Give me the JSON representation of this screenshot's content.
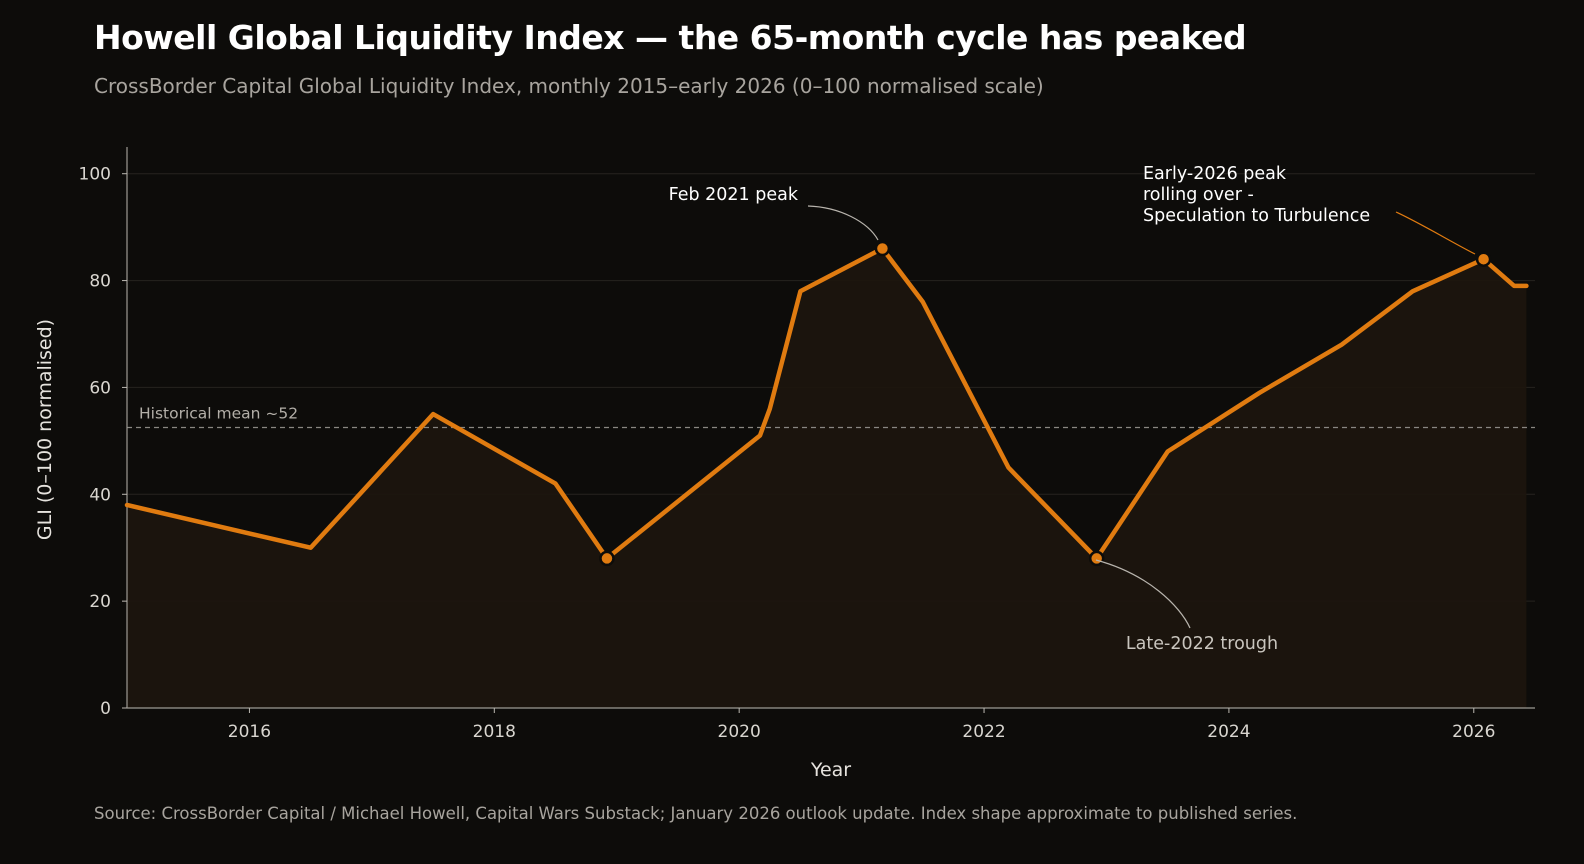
{
  "header": {
    "title": "Howell Global Liquidity Index — the 65-month cycle has peaked",
    "subtitle": "CrossBorder Capital Global Liquidity Index, monthly 2015–early 2026 (0–100 normalised scale)"
  },
  "footer": {
    "source": "Source: CrossBorder Capital / Michael Howell, Capital Wars Substack; January 2026 outlook update. Index shape approximate to published series."
  },
  "chart_data": {
    "type": "area",
    "xlabel": "Year",
    "ylabel": "GLI (0–100 normalised)",
    "xlim": [
      2015.0,
      2026.5
    ],
    "ylim": [
      0,
      105
    ],
    "x_ticks": [
      2016,
      2018,
      2020,
      2022,
      2024,
      2026
    ],
    "y_ticks": [
      0,
      20,
      40,
      60,
      80,
      100
    ],
    "grid": "horizontal",
    "colors": {
      "line": "#e07b10",
      "fill": "#1d150d",
      "background": "#0d0c0a",
      "mean_line": "#8a8782",
      "annotation_connector": "#b8b4ad"
    },
    "series": [
      {
        "points": [
          [
            2015.0,
            38
          ],
          [
            2016.5,
            30
          ],
          [
            2017.5,
            55
          ],
          [
            2018.5,
            42
          ],
          [
            2018.92,
            28
          ],
          [
            2020.17,
            51
          ],
          [
            2020.25,
            56
          ],
          [
            2020.5,
            78
          ],
          [
            2021.17,
            86
          ],
          [
            2021.5,
            76
          ],
          [
            2022.2,
            45
          ],
          [
            2022.92,
            28
          ],
          [
            2023.5,
            48
          ],
          [
            2024.25,
            59
          ],
          [
            2024.92,
            68
          ],
          [
            2025.5,
            78
          ],
          [
            2026.08,
            84
          ],
          [
            2026.33,
            79
          ],
          [
            2026.43,
            79
          ]
        ]
      }
    ],
    "reference_line": {
      "y": 52.5,
      "label": "Historical mean ~52"
    },
    "annotations": [
      {
        "x": 2021.17,
        "y": 86,
        "label_lines": [
          "Feb 2021 peak"
        ]
      },
      {
        "x": 2022.92,
        "y": 28,
        "label_lines": [
          "Late-2022 trough"
        ]
      },
      {
        "x": 2026.08,
        "y": 84,
        "label_lines": [
          "Early-2026 peak",
          "rolling over -",
          "Speculation to Turbulence"
        ]
      }
    ],
    "marked_points": [
      [
        2018.92,
        28
      ],
      [
        2021.17,
        86
      ],
      [
        2022.92,
        28
      ],
      [
        2026.08,
        84
      ]
    ]
  }
}
